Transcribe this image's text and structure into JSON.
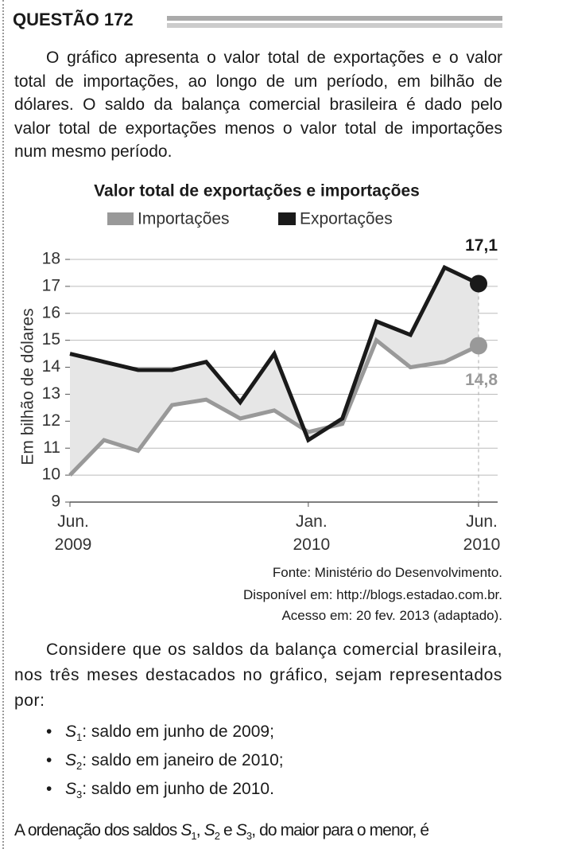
{
  "header": {
    "title": "QUESTÃO 172"
  },
  "intro": "O gráfico apresenta o valor total de exportações e o valor total de importações, ao longo de um período, em bilhão de dólares. O saldo da balança comercial brasileira é dado pelo valor total de exportações menos o valor total de importações num mesmo período.",
  "chart_data": {
    "type": "line",
    "title": "Valor total de exportações e importações",
    "y_label": "Em bilhão de dólares",
    "categories": [
      "Jun. 2009",
      null,
      null,
      null,
      null,
      null,
      null,
      "Jan. 2010",
      null,
      null,
      null,
      null,
      "Jun. 2010"
    ],
    "series": [
      {
        "name": "Importações",
        "color": "#999999",
        "values": [
          10.0,
          11.3,
          10.9,
          12.6,
          12.8,
          12.1,
          12.4,
          11.6,
          11.9,
          15.0,
          14.0,
          14.2,
          14.8
        ],
        "value_labels": [
          null,
          null,
          null,
          null,
          null,
          null,
          null,
          null,
          null,
          null,
          null,
          null,
          "14,8"
        ]
      },
      {
        "name": "Exportações",
        "color": "#1a1a1a",
        "values": [
          14.5,
          14.2,
          13.9,
          13.9,
          14.2,
          12.7,
          14.5,
          11.3,
          12.1,
          15.7,
          15.2,
          17.7,
          17.1
        ],
        "value_labels": [
          null,
          null,
          null,
          null,
          null,
          null,
          null,
          null,
          null,
          null,
          null,
          null,
          "17,1"
        ]
      }
    ],
    "ylim": [
      9,
      18
    ],
    "yticks": [
      9,
      10,
      11,
      12,
      13,
      14,
      15,
      16,
      17,
      18
    ],
    "grid": true,
    "legend": "top"
  },
  "source": [
    "Fonte: Ministério do Desenvolvimento.",
    "Disponível em: http://blogs.estadao.com.br.",
    "Acesso em: 20 fev. 2013 (adaptado)."
  ],
  "prompt": "Considere que os saldos da balança comercial brasileira, nos três meses destacados no gráfico, sejam representados por:",
  "items": [
    {
      "symbol": "S",
      "subscript": "1",
      "text": ": saldo em junho de 2009;"
    },
    {
      "symbol": "S",
      "subscript": "2",
      "text": ": saldo em janeiro de 2010;"
    },
    {
      "symbol": "S",
      "subscript": "3",
      "text": ": saldo em junho de 2010."
    }
  ],
  "closing": {
    "start": "A ordenação dos saldos",
    "symbol": "S",
    "subscripts": [
      "1",
      "2",
      "3"
    ],
    "comma": ",",
    "and": "e",
    "end": ", do maior para o menor, é"
  }
}
